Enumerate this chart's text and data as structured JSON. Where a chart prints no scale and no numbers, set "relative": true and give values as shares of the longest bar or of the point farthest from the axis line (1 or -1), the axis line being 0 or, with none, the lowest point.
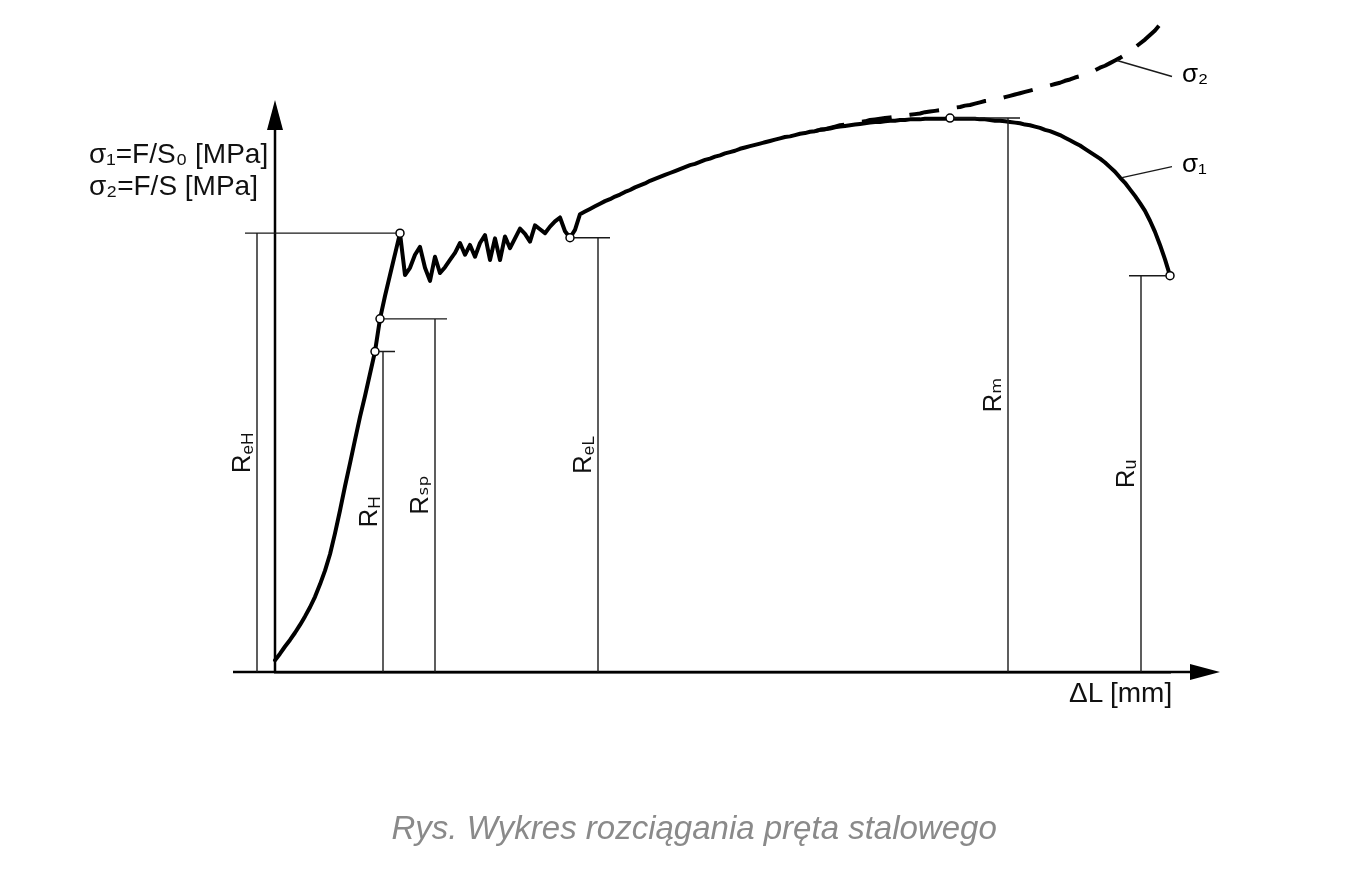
{
  "chart_data": {
    "type": "line",
    "relative": true,
    "tick_labels": false,
    "xlabel": "ΔL [mm]",
    "ylabel": "σ₁=F/S₀ [MPa]\nσ₂=F/S [MPa]",
    "categories": [
      null,
      null,
      null,
      null,
      null,
      null,
      null,
      null,
      null,
      null,
      null,
      null,
      null,
      null,
      null,
      null,
      null,
      null,
      null,
      null,
      null,
      null,
      null,
      null,
      null,
      null,
      null,
      null,
      null,
      null,
      null,
      null,
      null,
      null,
      null,
      null,
      null,
      null,
      null,
      null,
      null,
      null,
      null,
      null,
      null,
      null,
      null,
      null,
      null,
      null,
      null,
      null,
      null,
      null,
      null,
      null,
      null,
      null,
      null,
      null,
      null,
      null,
      null,
      null,
      null,
      null,
      null,
      null,
      null,
      null,
      null,
      null,
      null,
      null,
      null,
      null,
      null,
      null,
      null,
      null,
      null,
      null,
      null,
      null,
      null,
      null,
      null,
      null,
      null,
      null,
      null,
      null,
      null,
      null,
      null,
      null,
      null,
      null,
      null,
      null,
      null,
      null,
      null,
      null,
      null,
      null,
      null,
      null,
      null,
      null,
      null,
      null,
      null,
      null,
      null,
      null,
      null,
      null,
      null,
      null,
      null,
      null,
      null,
      null,
      null,
      null,
      null,
      null,
      null,
      null,
      null,
      null,
      null,
      null,
      null,
      null,
      null,
      null,
      null,
      null,
      null,
      null,
      null,
      null,
      null,
      null,
      null,
      null,
      null,
      null,
      null,
      null,
      null,
      null,
      null,
      null,
      null,
      null,
      null,
      null,
      null,
      null,
      null,
      null,
      null,
      null,
      null,
      null,
      null,
      null,
      null,
      null,
      null,
      null,
      null,
      null,
      null,
      null,
      null,
      null
    ],
    "series": [
      {
        "name": "σ₁",
        "type": "line",
        "color": "#000000",
        "values": [
          0.018,
          0.028,
          0.039,
          0.049,
          0.06,
          0.072,
          0.085,
          0.099,
          0.115,
          0.134,
          0.155,
          0.18,
          0.212,
          0.247,
          0.284,
          0.319,
          0.355,
          0.39,
          0.422,
          0.456,
          0.49,
          0.54,
          0.575,
          0.607,
          0.639,
          0.671,
          0.607,
          0.618,
          0.638,
          0.65,
          0.618,
          0.598,
          0.635,
          0.61,
          0.619,
          0.63,
          0.641,
          0.656,
          0.638,
          0.653,
          0.635,
          0.656,
          0.668,
          0.63,
          0.663,
          0.63,
          0.666,
          0.648,
          0.663,
          0.678,
          0.67,
          0.658,
          0.683,
          0.677,
          0.671,
          0.681,
          0.689,
          0.695,
          0.674,
          0.664,
          0.676,
          0.7,
          0.704,
          0.708,
          0.712,
          0.716,
          0.72,
          0.723,
          0.727,
          0.73,
          0.734,
          0.737,
          0.741,
          0.744,
          0.747,
          0.751,
          0.754,
          0.757,
          0.76,
          0.763,
          0.766,
          0.769,
          0.772,
          0.775,
          0.777,
          0.78,
          0.783,
          0.785,
          0.788,
          0.79,
          0.793,
          0.795,
          0.797,
          0.8,
          0.802,
          0.804,
          0.806,
          0.808,
          0.81,
          0.812,
          0.814,
          0.816,
          0.818,
          0.819,
          0.821,
          0.823,
          0.824,
          0.826,
          0.827,
          0.829,
          0.83,
          0.831,
          0.833,
          0.834,
          0.835,
          0.836,
          0.837,
          0.838,
          0.839,
          0.84,
          0.841,
          0.841,
          0.842,
          0.843,
          0.843,
          0.844,
          0.844,
          0.845,
          0.845,
          0.845,
          0.846,
          0.846,
          0.846,
          0.846,
          0.846,
          0.847,
          0.846,
          0.846,
          0.846,
          0.846,
          0.846,
          0.845,
          0.845,
          0.844,
          0.843,
          0.843,
          0.842,
          0.841,
          0.84,
          0.839,
          0.837,
          0.836,
          0.834,
          0.832,
          0.829,
          0.827,
          0.824,
          0.821,
          0.817,
          0.813,
          0.809,
          0.805,
          0.8,
          0.795,
          0.79,
          0.785,
          0.779,
          0.772,
          0.765,
          0.756,
          0.748,
          0.738,
          0.728,
          0.717,
          0.705,
          0.69,
          0.673,
          0.653,
          0.631,
          0.606
        ]
      },
      {
        "name": "σ₂",
        "type": "line",
        "color": "#000000",
        "line_style": "dashed",
        "values": [
          null,
          null,
          null,
          null,
          null,
          null,
          null,
          null,
          null,
          null,
          null,
          null,
          null,
          null,
          null,
          null,
          null,
          null,
          null,
          null,
          null,
          null,
          null,
          null,
          null,
          null,
          null,
          null,
          null,
          null,
          null,
          null,
          null,
          null,
          null,
          null,
          null,
          null,
          null,
          null,
          null,
          null,
          null,
          null,
          null,
          null,
          null,
          null,
          null,
          null,
          null,
          null,
          null,
          null,
          null,
          null,
          null,
          null,
          null,
          null,
          null,
          null,
          null,
          null,
          null,
          null,
          null,
          null,
          null,
          null,
          null,
          null,
          null,
          null,
          null,
          null,
          null,
          null,
          null,
          null,
          null,
          null,
          null,
          null,
          null,
          null,
          null,
          null,
          null,
          null,
          null,
          null,
          null,
          null,
          null,
          null,
          null,
          null,
          null,
          null,
          null,
          null,
          null,
          null,
          null,
          null,
          null,
          null,
          0.827,
          0.829,
          0.83,
          0.832,
          0.834,
          0.836,
          0.837,
          0.839,
          0.84,
          0.841,
          0.842,
          0.844,
          0.845,
          0.846,
          0.847,
          0.848,
          0.849,
          0.85,
          0.851,
          0.852,
          0.853,
          0.854,
          0.856,
          0.857,
          0.858,
          0.859,
          0.86,
          0.861,
          0.863,
          0.864,
          0.866,
          0.867,
          0.869,
          0.871,
          0.873,
          0.874,
          0.876,
          0.877,
          0.879,
          0.881,
          0.883,
          0.885,
          0.887,
          0.889,
          0.891,
          0.893,
          0.895,
          0.897,
          0.899,
          0.901,
          0.904,
          0.906,
          0.909,
          0.911,
          0.914,
          0.917,
          0.92,
          0.924,
          0.927,
          0.931,
          0.935,
          0.939,
          0.944,
          0.949,
          0.955,
          0.961,
          0.967,
          0.974,
          0.981,
          0.99,
          1,
          null
        ]
      }
    ],
    "annotations": [
      "R$_{eH}$",
      "R$_{H}$",
      "Rₛₚ",
      "R$_{eL}$",
      "Rₘ",
      "Rᵤ",
      "Rys. Wykres rozciągania pręta stalowego"
    ]
  }
}
